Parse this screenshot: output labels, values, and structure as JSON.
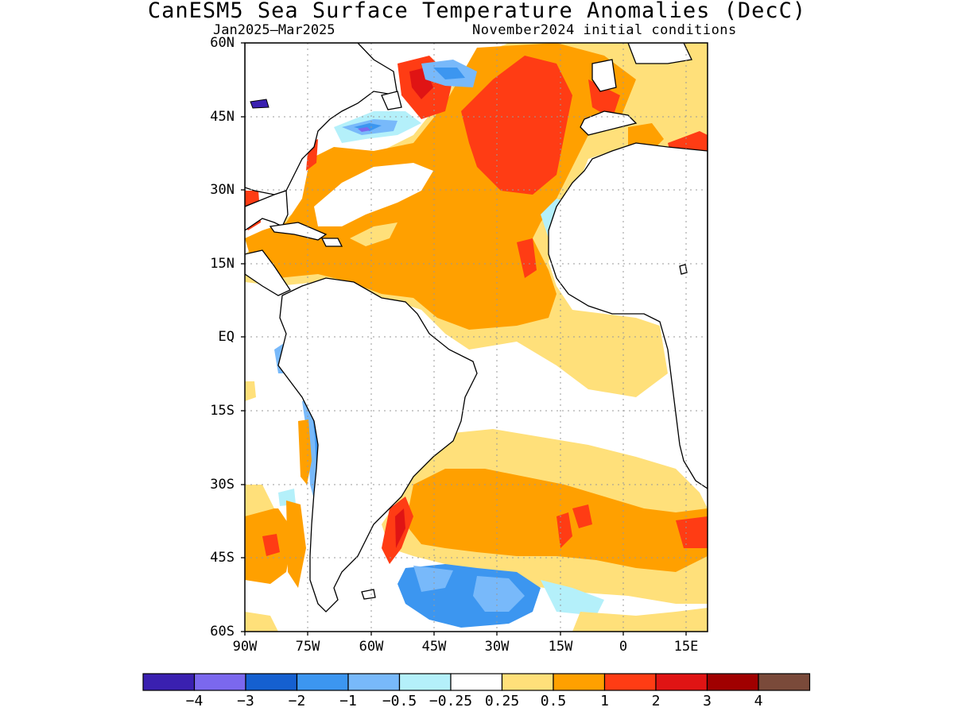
{
  "title": "CanESM5 Sea Surface Temperature Anomalies (DecC)",
  "subtitle_left": "Jan2025–Mar2025",
  "subtitle_right": "November2024 initial conditions",
  "map": {
    "projection": "lat-lon",
    "lon_range": [
      -90,
      20
    ],
    "lat_range": [
      -60,
      60
    ],
    "lat_labels": [
      {
        "lat": 60,
        "text": "60N"
      },
      {
        "lat": 45,
        "text": "45N"
      },
      {
        "lat": 30,
        "text": "30N"
      },
      {
        "lat": 15,
        "text": "15N"
      },
      {
        "lat": 0,
        "text": "EQ"
      },
      {
        "lat": -15,
        "text": "15S"
      },
      {
        "lat": -30,
        "text": "30S"
      },
      {
        "lat": -45,
        "text": "45S"
      },
      {
        "lat": -60,
        "text": "60S"
      }
    ],
    "lon_labels": [
      {
        "lon": -90,
        "text": "90W"
      },
      {
        "lon": -75,
        "text": "75W"
      },
      {
        "lon": -60,
        "text": "60W"
      },
      {
        "lon": -45,
        "text": "45W"
      },
      {
        "lon": -30,
        "text": "30W"
      },
      {
        "lon": -15,
        "text": "15W"
      },
      {
        "lon": 0,
        "text": "0"
      },
      {
        "lon": 15,
        "text": "15E"
      }
    ],
    "grid": "dotted"
  },
  "colorbar": {
    "colors": [
      "#3a20b0",
      "#7b68ee",
      "#1560d0",
      "#3c96f0",
      "#78b9fa",
      "#b4f0fa",
      "#ffffff",
      "#ffe07a",
      "#ffa000",
      "#ff3c14",
      "#e01414",
      "#a00000",
      "#7a4a3a"
    ],
    "labels": [
      "−4",
      "−3",
      "−2",
      "−1",
      "−0.5",
      "−0.25",
      "0.25",
      "0.5",
      "1",
      "2",
      "3",
      "4"
    ]
  }
}
